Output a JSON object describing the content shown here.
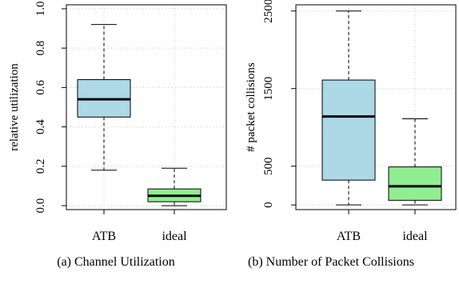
{
  "chart_data": [
    {
      "type": "box",
      "caption": "(a) Channel Utilization",
      "title": "",
      "xlabel": "",
      "ylabel": "relative utilization",
      "ylim": [
        -0.02,
        1.02
      ],
      "yticks": [
        0.0,
        0.2,
        0.4,
        0.6,
        0.8,
        1.0
      ],
      "ytick_labels": [
        "0.0",
        "0.2",
        "0.4",
        "0.6",
        "0.8",
        "1.0"
      ],
      "grid": true,
      "categories": [
        "ATB",
        "ideal"
      ],
      "boxes": [
        {
          "name": "ATB",
          "whisker_low": 0.18,
          "q1": 0.45,
          "median": 0.54,
          "q3": 0.64,
          "whisker_high": 0.92,
          "fill": "#add8e6"
        },
        {
          "name": "ideal",
          "whisker_low": 0.0,
          "q1": 0.02,
          "median": 0.05,
          "q3": 0.085,
          "whisker_high": 0.19,
          "fill": "#90ee90"
        }
      ]
    },
    {
      "type": "box",
      "caption": "(b) Number of Packet Collisions",
      "title": "",
      "xlabel": "",
      "ylabel": "# packet collisions",
      "ylim": [
        -60,
        2580
      ],
      "yticks": [
        0,
        500,
        1500,
        2500
      ],
      "ytick_labels": [
        "0",
        "500",
        "1500",
        "2500"
      ],
      "grid": true,
      "categories": [
        "ATB",
        "ideal"
      ],
      "boxes": [
        {
          "name": "ATB",
          "whisker_low": 0,
          "q1": 320,
          "median": 1140,
          "q3": 1610,
          "whisker_high": 2500,
          "fill": "#add8e6"
        },
        {
          "name": "ideal",
          "whisker_low": 0,
          "q1": 60,
          "median": 240,
          "q3": 490,
          "whisker_high": 1110,
          "fill": "#90ee90"
        }
      ]
    }
  ]
}
